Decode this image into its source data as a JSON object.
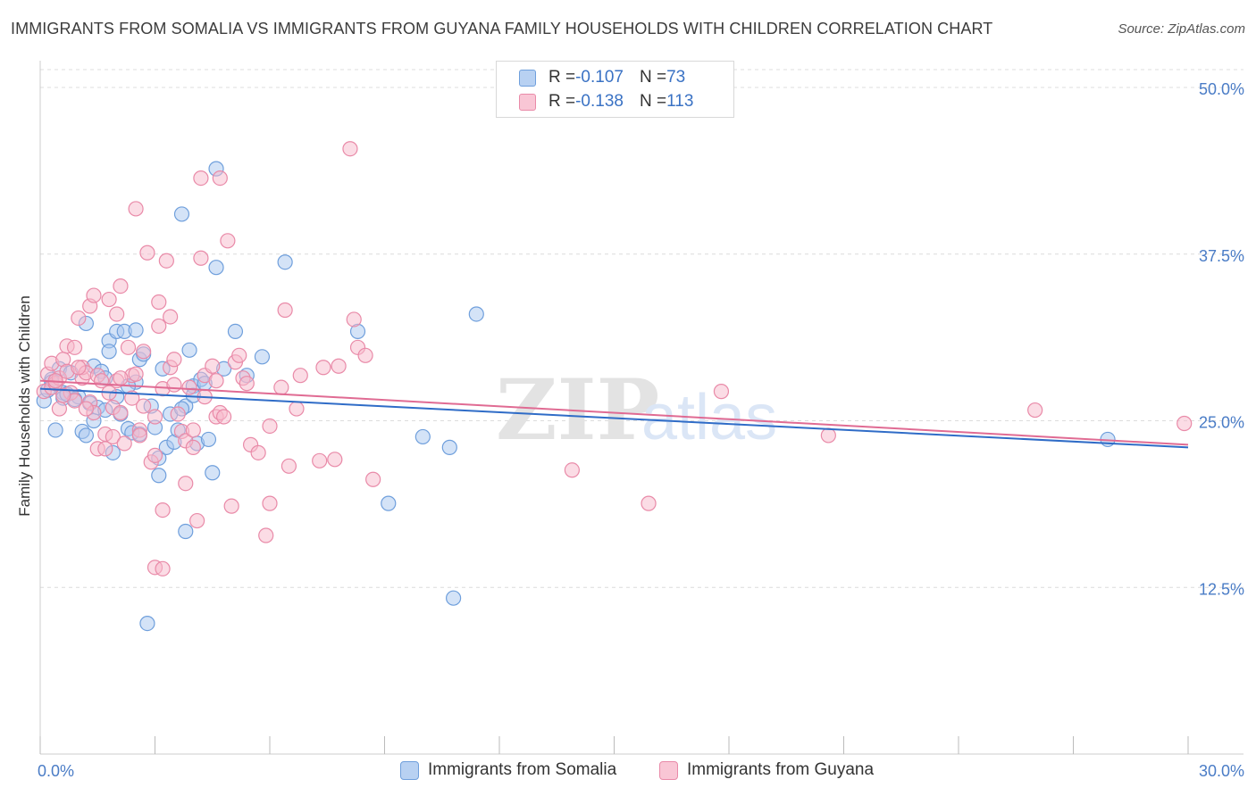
{
  "title": "IMMIGRANTS FROM SOMALIA VS IMMIGRANTS FROM GUYANA FAMILY HOUSEHOLDS WITH CHILDREN CORRELATION CHART",
  "source": "Source: ZipAtlas.com",
  "watermark": {
    "part1": "ZIP",
    "part2": "atlas"
  },
  "legend": {
    "series1": {
      "r_label": "R = ",
      "r_value": "-0.107",
      "n_label": "N = ",
      "n_value": "73"
    },
    "series2": {
      "r_label": "R = ",
      "r_value": "-0.138",
      "n_label": "N = ",
      "n_value": "113"
    }
  },
  "colors": {
    "somalia_fill": "#a9c8f0",
    "somalia_stroke": "#6f9fdc",
    "somalia_line": "#2f6cc7",
    "guyana_fill": "#f7b9cc",
    "guyana_stroke": "#e98aa8",
    "guyana_line": "#e06b93",
    "tick_label": "#4a7cc6",
    "grid": "#dcdcdc"
  },
  "chart_data": {
    "type": "scatter",
    "title": "IMMIGRANTS FROM SOMALIA VS IMMIGRANTS FROM GUYANA FAMILY HOUSEHOLDS WITH CHILDREN CORRELATION CHART",
    "xlabel": "",
    "ylabel": "Family Households with Children",
    "xlim": [
      0,
      30
    ],
    "ylim": [
      0,
      50
    ],
    "x_tick_labels": [
      "0.0%",
      "30.0%"
    ],
    "y_ticks": [
      12.5,
      25.0,
      37.5,
      50.0
    ],
    "y_tick_labels": [
      "12.5%",
      "25.0%",
      "37.5%",
      "50.0%"
    ],
    "grid": "horizontal dashed",
    "legend_position": "top-center",
    "series": [
      {
        "name": "Immigrants from Somalia",
        "trend": {
          "x": [
            0,
            30
          ],
          "y": [
            27.4,
            23.0
          ]
        },
        "points": [
          [
            0.1,
            26.5
          ],
          [
            0.2,
            27.3
          ],
          [
            0.3,
            28.1
          ],
          [
            0.4,
            24.3
          ],
          [
            0.5,
            28.9
          ],
          [
            0.6,
            27.1
          ],
          [
            0.6,
            26.7
          ],
          [
            0.7,
            27.0
          ],
          [
            0.8,
            28.6
          ],
          [
            1.0,
            26.8
          ],
          [
            1.1,
            24.2
          ],
          [
            1.2,
            32.3
          ],
          [
            1.2,
            23.9
          ],
          [
            1.3,
            26.3
          ],
          [
            1.4,
            25.0
          ],
          [
            1.4,
            29.1
          ],
          [
            1.5,
            26.0
          ],
          [
            1.6,
            28.7
          ],
          [
            1.7,
            25.8
          ],
          [
            1.8,
            31.0
          ],
          [
            1.8,
            30.2
          ],
          [
            1.9,
            22.6
          ],
          [
            2.0,
            31.7
          ],
          [
            2.0,
            26.8
          ],
          [
            2.1,
            25.5
          ],
          [
            2.2,
            31.7
          ],
          [
            2.3,
            24.4
          ],
          [
            2.4,
            24.1
          ],
          [
            2.5,
            31.8
          ],
          [
            2.5,
            27.9
          ],
          [
            2.6,
            24.0
          ],
          [
            2.6,
            29.6
          ],
          [
            2.7,
            30.0
          ],
          [
            2.8,
            9.8
          ],
          [
            2.9,
            26.1
          ],
          [
            3.0,
            24.5
          ],
          [
            3.1,
            22.2
          ],
          [
            3.1,
            20.9
          ],
          [
            3.2,
            28.9
          ],
          [
            3.3,
            23.0
          ],
          [
            3.4,
            25.5
          ],
          [
            3.5,
            23.4
          ],
          [
            3.6,
            24.3
          ],
          [
            3.7,
            40.5
          ],
          [
            3.8,
            26.1
          ],
          [
            3.8,
            16.7
          ],
          [
            3.9,
            30.3
          ],
          [
            4.0,
            27.6
          ],
          [
            4.1,
            23.3
          ],
          [
            4.2,
            28.1
          ],
          [
            4.3,
            27.8
          ],
          [
            4.4,
            23.6
          ],
          [
            4.5,
            21.1
          ],
          [
            4.6,
            43.9
          ],
          [
            4.6,
            36.5
          ],
          [
            4.8,
            28.9
          ],
          [
            5.1,
            31.7
          ],
          [
            5.4,
            28.4
          ],
          [
            5.8,
            29.8
          ],
          [
            6.4,
            36.9
          ],
          [
            8.3,
            31.7
          ],
          [
            9.1,
            18.8
          ],
          [
            10.0,
            23.8
          ],
          [
            10.7,
            23.0
          ],
          [
            10.8,
            11.7
          ],
          [
            11.4,
            33.0
          ],
          [
            27.9,
            23.6
          ],
          [
            0.3,
            27.9
          ],
          [
            0.9,
            26.6
          ],
          [
            2.3,
            27.6
          ],
          [
            3.7,
            25.9
          ],
          [
            4.0,
            26.9
          ],
          [
            1.7,
            28.2
          ]
        ]
      },
      {
        "name": "Immigrants from Guyana",
        "trend": {
          "x": [
            0,
            30
          ],
          "y": [
            28.0,
            23.2
          ]
        },
        "points": [
          [
            0.1,
            27.2
          ],
          [
            0.2,
            28.5
          ],
          [
            0.3,
            27.5
          ],
          [
            0.3,
            29.3
          ],
          [
            0.4,
            27.8
          ],
          [
            0.5,
            25.9
          ],
          [
            0.5,
            28.2
          ],
          [
            0.6,
            29.6
          ],
          [
            0.7,
            28.7
          ],
          [
            0.7,
            30.6
          ],
          [
            0.8,
            27.1
          ],
          [
            0.9,
            26.5
          ],
          [
            0.9,
            30.5
          ],
          [
            1.0,
            32.7
          ],
          [
            1.1,
            28.2
          ],
          [
            1.1,
            29.0
          ],
          [
            1.2,
            28.6
          ],
          [
            1.3,
            33.6
          ],
          [
            1.3,
            26.4
          ],
          [
            1.4,
            34.4
          ],
          [
            1.4,
            25.6
          ],
          [
            1.5,
            28.4
          ],
          [
            1.5,
            22.9
          ],
          [
            1.6,
            28.0
          ],
          [
            1.7,
            24.0
          ],
          [
            1.7,
            22.9
          ],
          [
            1.8,
            34.1
          ],
          [
            1.8,
            27.1
          ],
          [
            1.9,
            23.8
          ],
          [
            1.9,
            26.0
          ],
          [
            2.0,
            33.0
          ],
          [
            2.0,
            28.0
          ],
          [
            2.1,
            35.1
          ],
          [
            2.1,
            25.6
          ],
          [
            2.2,
            23.3
          ],
          [
            2.3,
            30.5
          ],
          [
            2.4,
            26.7
          ],
          [
            2.4,
            28.4
          ],
          [
            2.5,
            40.9
          ],
          [
            2.5,
            28.5
          ],
          [
            2.6,
            24.3
          ],
          [
            2.6,
            23.9
          ],
          [
            2.7,
            30.2
          ],
          [
            2.8,
            37.6
          ],
          [
            2.9,
            21.9
          ],
          [
            3.0,
            22.4
          ],
          [
            3.0,
            25.3
          ],
          [
            3.1,
            33.9
          ],
          [
            3.1,
            32.1
          ],
          [
            3.2,
            27.4
          ],
          [
            3.2,
            18.3
          ],
          [
            3.3,
            37.0
          ],
          [
            3.4,
            29.0
          ],
          [
            3.4,
            32.8
          ],
          [
            3.5,
            27.7
          ],
          [
            3.5,
            29.6
          ],
          [
            3.6,
            25.5
          ],
          [
            3.7,
            24.2
          ],
          [
            3.8,
            23.5
          ],
          [
            3.8,
            20.3
          ],
          [
            3.9,
            27.5
          ],
          [
            4.0,
            23.0
          ],
          [
            4.0,
            24.3
          ],
          [
            4.1,
            17.5
          ],
          [
            4.2,
            43.2
          ],
          [
            4.2,
            37.2
          ],
          [
            4.3,
            28.4
          ],
          [
            4.3,
            26.8
          ],
          [
            4.5,
            29.1
          ],
          [
            4.6,
            25.3
          ],
          [
            4.6,
            28.0
          ],
          [
            4.7,
            43.2
          ],
          [
            4.7,
            25.6
          ],
          [
            4.8,
            25.3
          ],
          [
            4.9,
            38.5
          ],
          [
            5.0,
            18.6
          ],
          [
            5.1,
            29.4
          ],
          [
            5.2,
            29.9
          ],
          [
            5.3,
            28.2
          ],
          [
            5.4,
            27.8
          ],
          [
            5.5,
            23.2
          ],
          [
            5.7,
            22.6
          ],
          [
            5.9,
            16.4
          ],
          [
            6.0,
            18.8
          ],
          [
            6.0,
            24.6
          ],
          [
            6.3,
            27.5
          ],
          [
            6.4,
            33.3
          ],
          [
            6.5,
            21.6
          ],
          [
            6.7,
            25.9
          ],
          [
            6.8,
            28.4
          ],
          [
            7.3,
            22.0
          ],
          [
            7.4,
            29.0
          ],
          [
            7.7,
            22.1
          ],
          [
            7.8,
            29.1
          ],
          [
            8.1,
            45.4
          ],
          [
            8.2,
            32.6
          ],
          [
            8.3,
            30.5
          ],
          [
            8.5,
            29.9
          ],
          [
            8.7,
            20.6
          ],
          [
            13.9,
            21.3
          ],
          [
            15.9,
            18.8
          ],
          [
            17.8,
            27.2
          ],
          [
            20.6,
            23.9
          ],
          [
            26.0,
            25.8
          ],
          [
            29.9,
            24.8
          ],
          [
            3.0,
            14.0
          ],
          [
            3.2,
            13.9
          ],
          [
            2.1,
            28.2
          ],
          [
            1.0,
            29.0
          ],
          [
            0.6,
            26.9
          ],
          [
            0.4,
            28.0
          ],
          [
            2.7,
            26.1
          ],
          [
            1.2,
            25.9
          ]
        ]
      }
    ]
  },
  "bottom_legend": {
    "series1": "Immigrants from Somalia",
    "series2": "Immigrants from Guyana"
  }
}
